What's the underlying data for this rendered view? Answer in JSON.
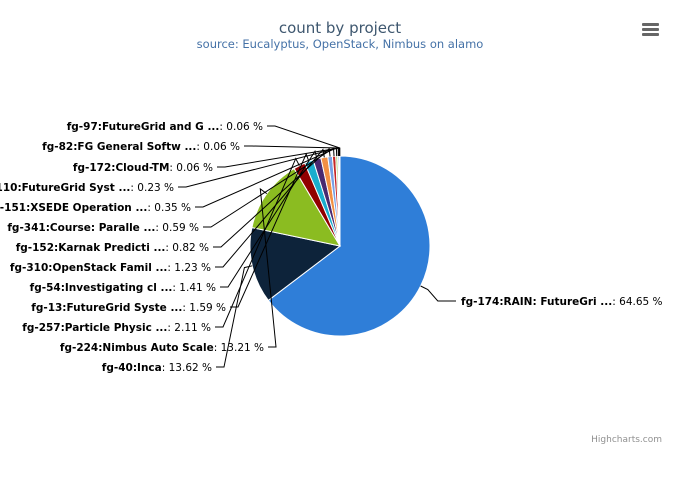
{
  "title": "count by project",
  "subtitle": "source: Eucalyptus, OpenStack, Nimbus on alamo",
  "credits": "Highcharts.com",
  "menu_icon": "hamburger-menu-icon",
  "chart_data": {
    "type": "pie",
    "title": "count by project",
    "subtitle": "source: Eucalyptus, OpenStack, Nimbus on alamo",
    "slices": [
      {
        "label": "fg-174:RAIN: FutureGri ...",
        "value": 64.65,
        "pct_label": "64.65 %",
        "color": "#2f7ed8"
      },
      {
        "label": "fg-40:Inca",
        "value": 13.62,
        "pct_label": "13.62 %",
        "color": "#0d233a"
      },
      {
        "label": "fg-224:Nimbus Auto Scale",
        "value": 13.21,
        "pct_label": "13.21 %",
        "color": "#8bbc21"
      },
      {
        "label": "fg-257:Particle Physic ...",
        "value": 2.11,
        "pct_label": "2.11 %",
        "color": "#910000"
      },
      {
        "label": "fg-13:FutureGrid Syste ...",
        "value": 1.59,
        "pct_label": "1.59 %",
        "color": "#1aadce"
      },
      {
        "label": "fg-54:Investigating cl ...",
        "value": 1.41,
        "pct_label": "1.41 %",
        "color": "#492970"
      },
      {
        "label": "fg-310:OpenStack Famil ...",
        "value": 1.23,
        "pct_label": "1.23 %",
        "color": "#f28f43"
      },
      {
        "label": "fg-152:Karnak Predicti ...",
        "value": 0.82,
        "pct_label": "0.82 %",
        "color": "#77a1e5"
      },
      {
        "label": "fg-341:Course: Paralle ...",
        "value": 0.59,
        "pct_label": "0.59 %",
        "color": "#c42525"
      },
      {
        "label": "fg-151:XSEDE Operation ...",
        "value": 0.35,
        "pct_label": "0.35 %",
        "color": "#a6c96a"
      },
      {
        "label": "fg-110:FutureGrid Syst ...",
        "value": 0.23,
        "pct_label": "0.23 %",
        "color": "#2f7ed8"
      },
      {
        "label": "fg-172:Cloud-TM",
        "value": 0.06,
        "pct_label": "0.06 %",
        "color": "#0d233a"
      },
      {
        "label": "fg-82:FG General Softw ...",
        "value": 0.06,
        "pct_label": "0.06 %",
        "color": "#8bbc21"
      },
      {
        "label": "fg-97:FutureGrid and G ...",
        "value": 0.06,
        "pct_label": "0.06 %",
        "color": "#910000"
      }
    ]
  }
}
